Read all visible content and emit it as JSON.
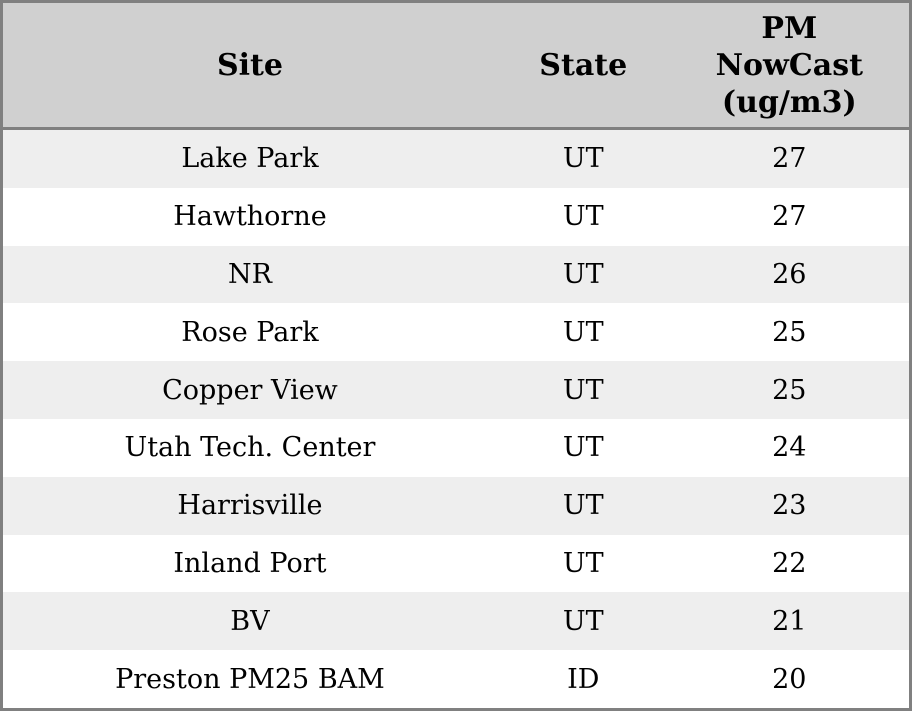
{
  "chart_data": {
    "type": "table",
    "title": "",
    "columns": [
      "Site",
      "State",
      "PM NowCast (ug/m3)"
    ],
    "rows": [
      [
        "Lake Park",
        "UT",
        27
      ],
      [
        "Hawthorne",
        "UT",
        27
      ],
      [
        "NR",
        "UT",
        26
      ],
      [
        "Rose Park",
        "UT",
        25
      ],
      [
        "Copper View",
        "UT",
        25
      ],
      [
        "Utah Tech. Center",
        "UT",
        24
      ],
      [
        "Harrisville",
        "UT",
        23
      ],
      [
        "Inland Port",
        "UT",
        22
      ],
      [
        "BV",
        "UT",
        21
      ],
      [
        "Preston PM25 BAM",
        "ID",
        20
      ]
    ],
    "layout_hints": {
      "striped_rows": true,
      "header_position": "top",
      "all_cells_centered": true
    }
  },
  "colors": {
    "header_bg": "#d0d0d0",
    "row_bg": "#ffffff",
    "row_alt_bg": "#eeeeee",
    "border": "#808080",
    "text": "#000000"
  }
}
